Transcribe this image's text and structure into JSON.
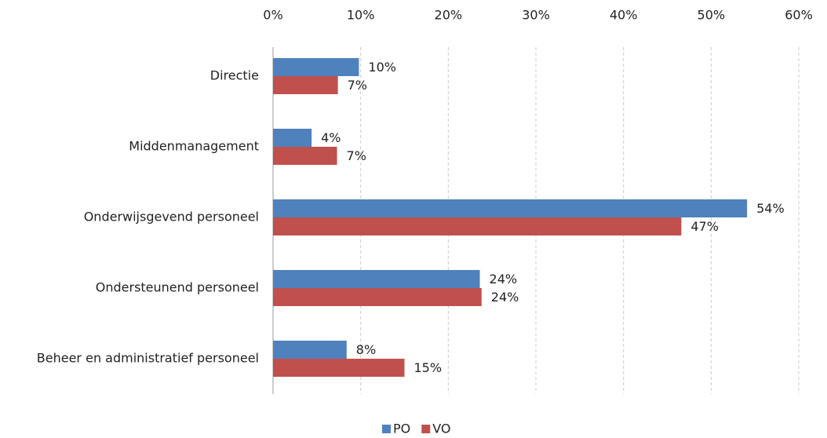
{
  "chart_data": {
    "type": "hbar",
    "categories": [
      "Directie",
      "Middenmanagement",
      "Onderwijsgevend personeel",
      "Ondersteunend personeel",
      "Beheer en administratief personeel"
    ],
    "series": [
      {
        "name": "PO",
        "color": "#4f81bd",
        "values": [
          9.8,
          4.4,
          54.1,
          23.6,
          8.4
        ],
        "value_labels": [
          "10%",
          "4%",
          "54%",
          "24%",
          "8%"
        ]
      },
      {
        "name": "VO",
        "color": "#c0504d",
        "values": [
          7.4,
          7.3,
          46.6,
          23.8,
          15.0
        ],
        "value_labels": [
          "7%",
          "7%",
          "47%",
          "24%",
          "15%"
        ]
      }
    ],
    "xlim": [
      0,
      60
    ],
    "xticks": [
      {
        "value": 0,
        "label": "0%"
      },
      {
        "value": 10,
        "label": "10%"
      },
      {
        "value": 20,
        "label": "20%"
      },
      {
        "value": 30,
        "label": "30%"
      },
      {
        "value": 40,
        "label": "40%"
      },
      {
        "value": 50,
        "label": "50%"
      },
      {
        "value": 60,
        "label": "60%"
      }
    ],
    "grid": true,
    "legend": "bottom"
  }
}
